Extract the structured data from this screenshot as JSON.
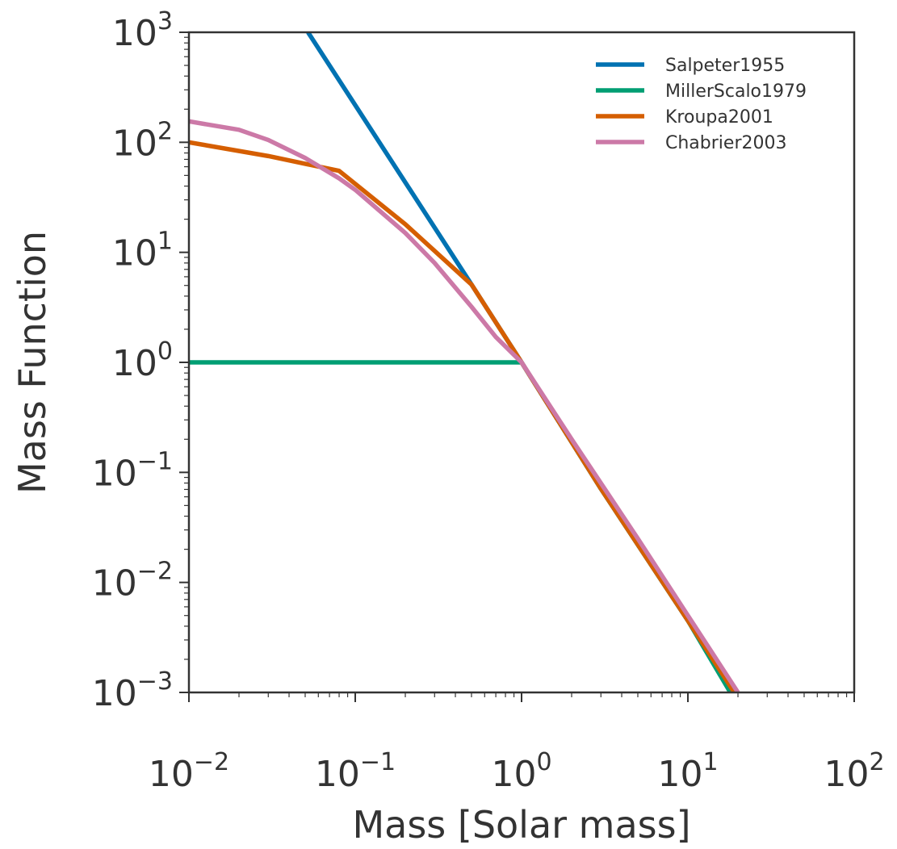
{
  "chart_data": {
    "type": "line",
    "title": "",
    "xlabel": "Mass [Solar mass]",
    "ylabel": "Mass Function",
    "xscale": "log",
    "yscale": "log",
    "xlim": [
      0.01,
      100
    ],
    "ylim": [
      0.001,
      1000
    ],
    "grid": false,
    "legend_position": "top-right",
    "x_ticks": [
      {
        "value": 0.01,
        "base": "10",
        "exp": "−2"
      },
      {
        "value": 0.1,
        "base": "10",
        "exp": "−1"
      },
      {
        "value": 1,
        "base": "10",
        "exp": "0"
      },
      {
        "value": 10,
        "base": "10",
        "exp": "1"
      },
      {
        "value": 100,
        "base": "10",
        "exp": "2"
      }
    ],
    "y_ticks": [
      {
        "value": 0.001,
        "base": "10",
        "exp": "−3"
      },
      {
        "value": 0.01,
        "base": "10",
        "exp": "−2"
      },
      {
        "value": 0.1,
        "base": "10",
        "exp": "−1"
      },
      {
        "value": 1,
        "base": "10",
        "exp": "0"
      },
      {
        "value": 10,
        "base": "10",
        "exp": "1"
      },
      {
        "value": 100,
        "base": "10",
        "exp": "2"
      },
      {
        "value": 1000,
        "base": "10",
        "exp": "3"
      }
    ],
    "series": [
      {
        "name": "Salpeter1955",
        "color": "#0072B2",
        "x": [
          0.052,
          0.5,
          1,
          3,
          10,
          19
        ],
        "y": [
          1000,
          5.1,
          1,
          0.071,
          0.0045,
          0.001
        ]
      },
      {
        "name": "MillerScalo1979",
        "color": "#009E73",
        "x": [
          0.01,
          0.1,
          1,
          3,
          10,
          18
        ],
        "y": [
          1,
          1,
          1,
          0.071,
          0.0045,
          0.001
        ]
      },
      {
        "name": "Kroupa2001",
        "color": "#D55E00",
        "x": [
          0.01,
          0.03,
          0.08,
          0.2,
          0.5,
          1,
          3,
          10,
          19
        ],
        "y": [
          100,
          75,
          55,
          18,
          5.1,
          1,
          0.071,
          0.0045,
          0.001
        ]
      },
      {
        "name": "Chabrier2003",
        "color": "#CC79A7",
        "x": [
          0.01,
          0.02,
          0.03,
          0.05,
          0.08,
          0.1,
          0.2,
          0.3,
          0.5,
          0.7,
          1,
          2,
          5,
          10,
          20
        ],
        "y": [
          155,
          130,
          105,
          72,
          47,
          37,
          15,
          8,
          3.2,
          1.7,
          1,
          0.2,
          0.025,
          0.005,
          0.001
        ]
      }
    ]
  }
}
